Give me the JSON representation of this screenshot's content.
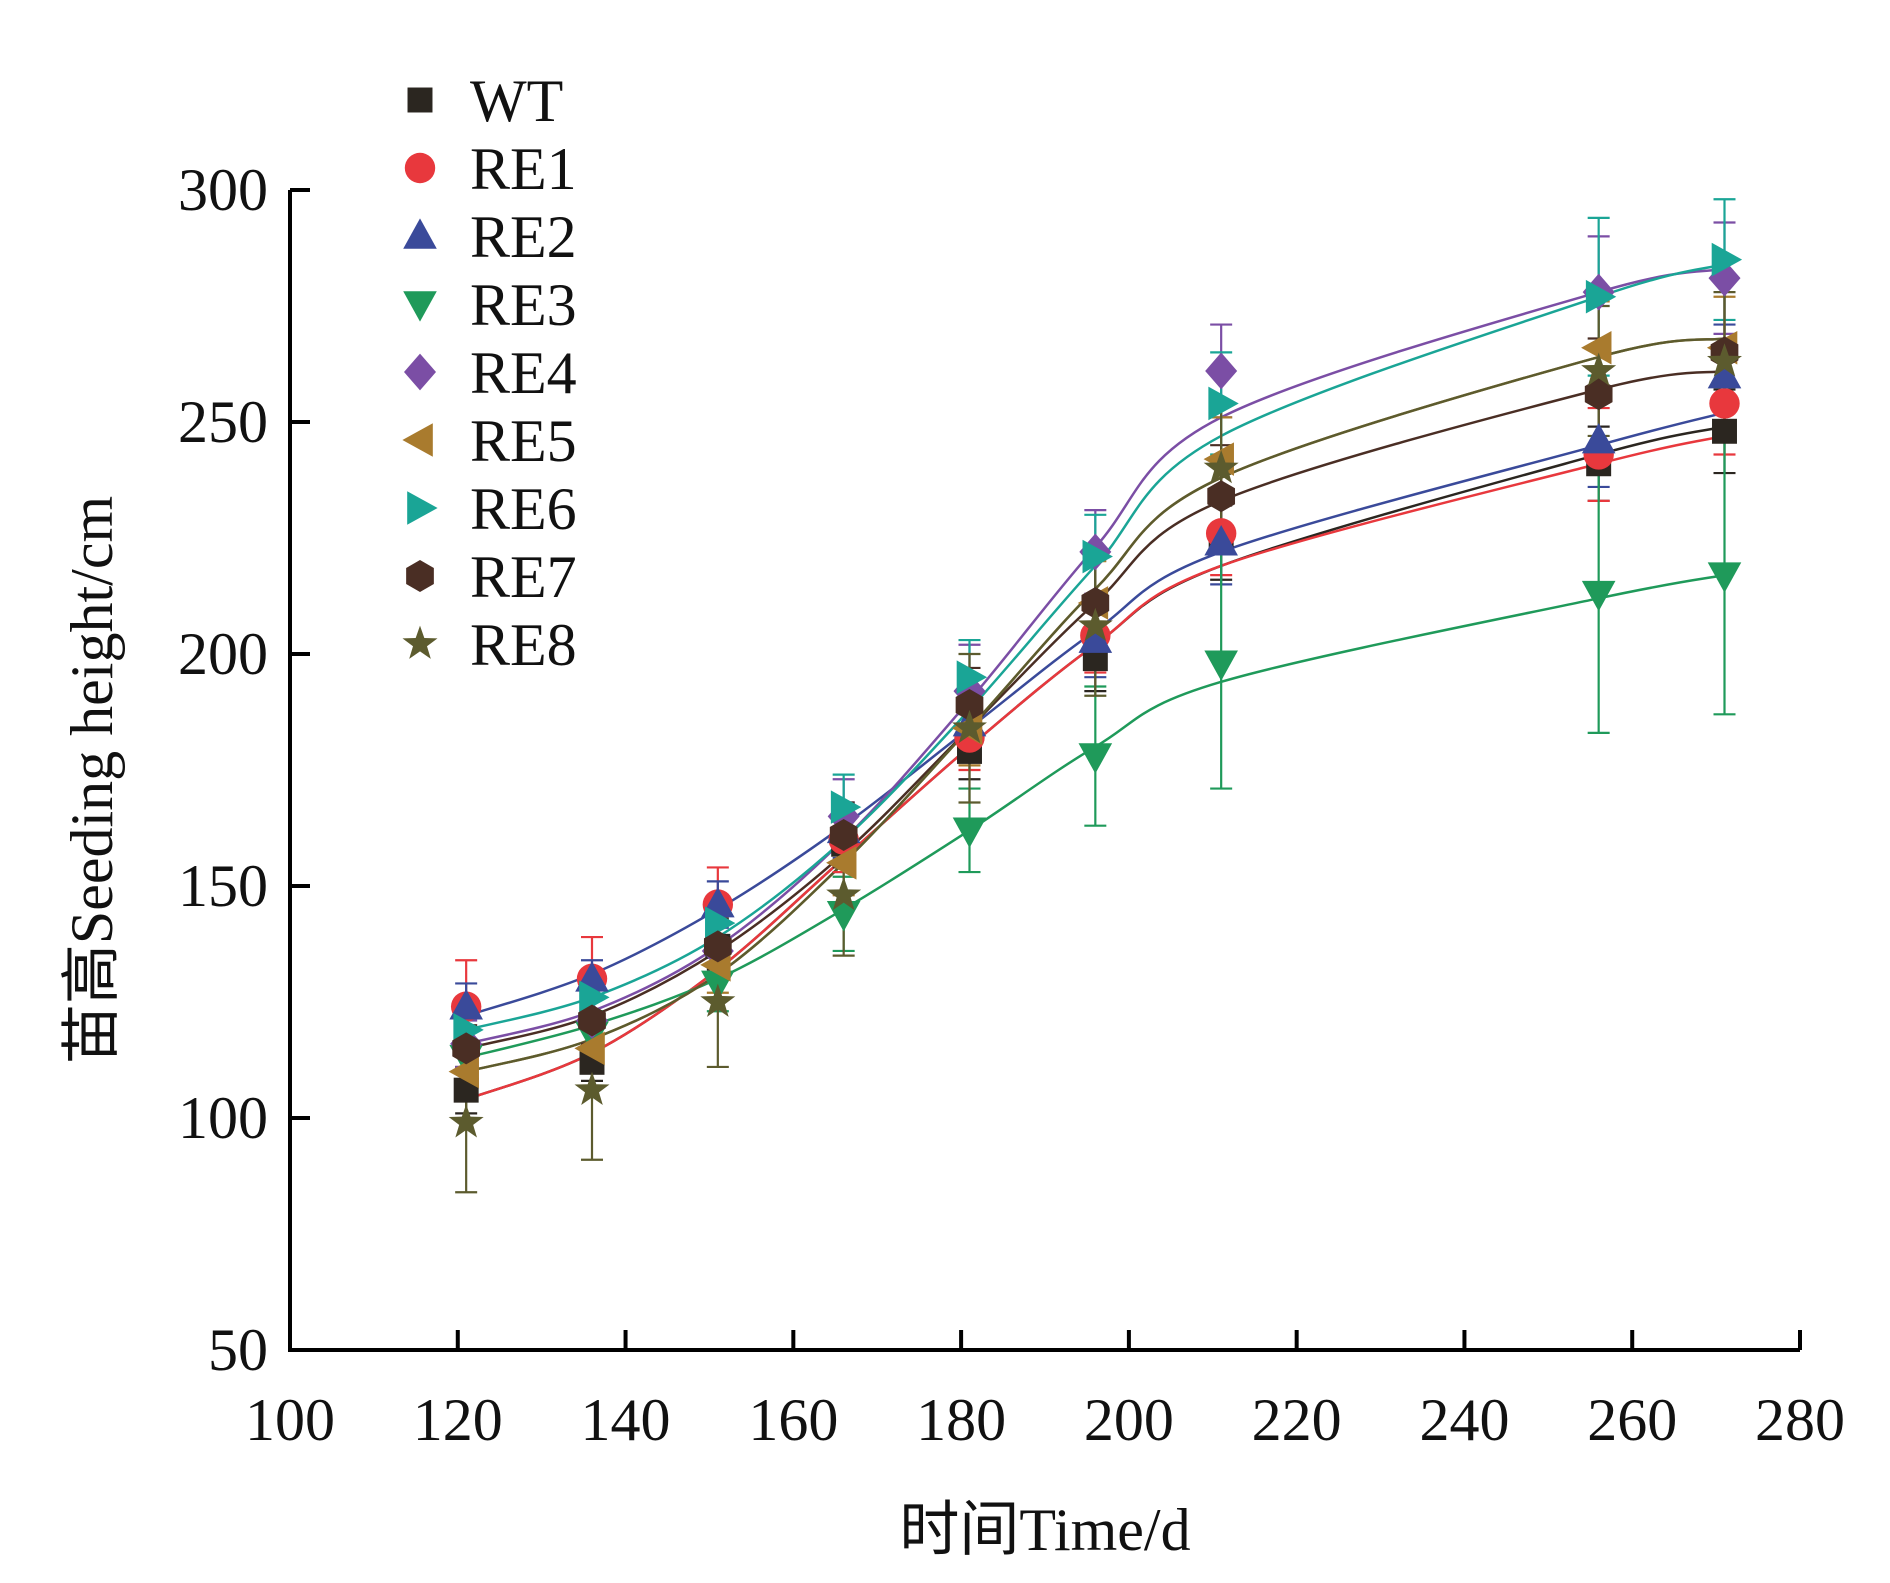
{
  "chart_data": {
    "type": "scatter",
    "title": "",
    "xlabel": "时间Time/d",
    "ylabel": "苗高Seeding height/cm",
    "xlim": [
      100,
      280
    ],
    "ylim": [
      50,
      300
    ],
    "xticks": [
      100,
      120,
      140,
      160,
      180,
      200,
      220,
      240,
      260,
      280
    ],
    "yticks": [
      50,
      100,
      150,
      200,
      250,
      300
    ],
    "grid": false,
    "legend": "top-left",
    "x": [
      121,
      136,
      151,
      166,
      181,
      196,
      211,
      256,
      271
    ],
    "series": [
      {
        "name": "WT",
        "marker": "square",
        "color": "#2b2620",
        "values": [
          106,
          112,
          137,
          159,
          179,
          199,
          224,
          241,
          248
        ],
        "errors": [
          5,
          4,
          5,
          6,
          6,
          7,
          8,
          8,
          9
        ],
        "fit": [
          104,
          114,
          132,
          156,
          180,
          202,
          219,
          243,
          249
        ]
      },
      {
        "name": "RE1",
        "marker": "circle",
        "color": "#e8383d",
        "values": [
          124,
          130,
          146,
          160,
          182,
          204,
          226,
          243,
          254
        ],
        "errors": [
          10,
          9,
          8,
          7,
          7,
          8,
          9,
          10,
          11
        ],
        "fit": [
          104,
          114,
          132,
          156,
          180,
          202,
          219,
          241,
          247
        ]
      },
      {
        "name": "RE2",
        "marker": "triangle-up",
        "color": "#3a4a9a",
        "values": [
          124,
          130,
          146,
          162,
          185,
          203,
          224,
          246,
          260
        ],
        "errors": [
          5,
          4,
          5,
          6,
          7,
          8,
          9,
          10,
          11
        ],
        "fit": [
          122,
          131,
          145,
          163,
          184,
          205,
          222,
          245,
          252
        ]
      },
      {
        "name": "RE3",
        "marker": "triangle-down",
        "color": "#1f9a5a",
        "values": [
          113,
          118,
          129,
          144,
          162,
          178,
          198,
          213,
          217
        ],
        "errors": [
          6,
          5,
          6,
          8,
          9,
          15,
          27,
          30,
          30
        ],
        "fit": [
          113,
          120,
          130,
          145,
          162,
          180,
          194,
          212,
          217
        ]
      },
      {
        "name": "RE4",
        "marker": "diamond",
        "color": "#7b4ea5",
        "values": [
          116,
          121,
          136,
          165,
          192,
          222,
          261,
          278,
          281
        ],
        "errors": [
          5,
          5,
          6,
          8,
          10,
          9,
          10,
          12,
          12
        ],
        "fit": [
          116,
          123,
          137,
          160,
          190,
          223,
          251,
          278,
          283
        ]
      },
      {
        "name": "RE5",
        "marker": "triangle-left",
        "color": "#a97b2e",
        "values": [
          110,
          115,
          133,
          155,
          184,
          211,
          242,
          266,
          266
        ],
        "errors": [
          5,
          5,
          6,
          7,
          8,
          9,
          9,
          10,
          11
        ],
        "fit": [
          110,
          117,
          131,
          155,
          184,
          214,
          238,
          264,
          268
        ]
      },
      {
        "name": "RE6",
        "marker": "triangle-right",
        "color": "#1aa596",
        "values": [
          119,
          126,
          142,
          167,
          195,
          221,
          254,
          277,
          285
        ],
        "errors": [
          5,
          5,
          6,
          7,
          8,
          9,
          11,
          17,
          13
        ],
        "fit": [
          119,
          126,
          139,
          160,
          188,
          219,
          247,
          277,
          284
        ]
      },
      {
        "name": "RE7",
        "marker": "hexagon",
        "color": "#4a2e24",
        "values": [
          115,
          121,
          137,
          161,
          189,
          211,
          234,
          256,
          265
        ],
        "errors": [
          5,
          5,
          6,
          7,
          8,
          10,
          11,
          12,
          13
        ],
        "fit": [
          115,
          122,
          136,
          157,
          184,
          211,
          233,
          257,
          261
        ]
      },
      {
        "name": "RE8",
        "marker": "star",
        "color": "#5c5b2e",
        "values": [
          99,
          106,
          125,
          148,
          184,
          206,
          240,
          261,
          263
        ],
        "errors": [
          15,
          15,
          14,
          13,
          16,
          15,
          14,
          14,
          15
        ],
        "fit": [
          110,
          117,
          131,
          155,
          184,
          214,
          238,
          264,
          268
        ]
      }
    ]
  }
}
